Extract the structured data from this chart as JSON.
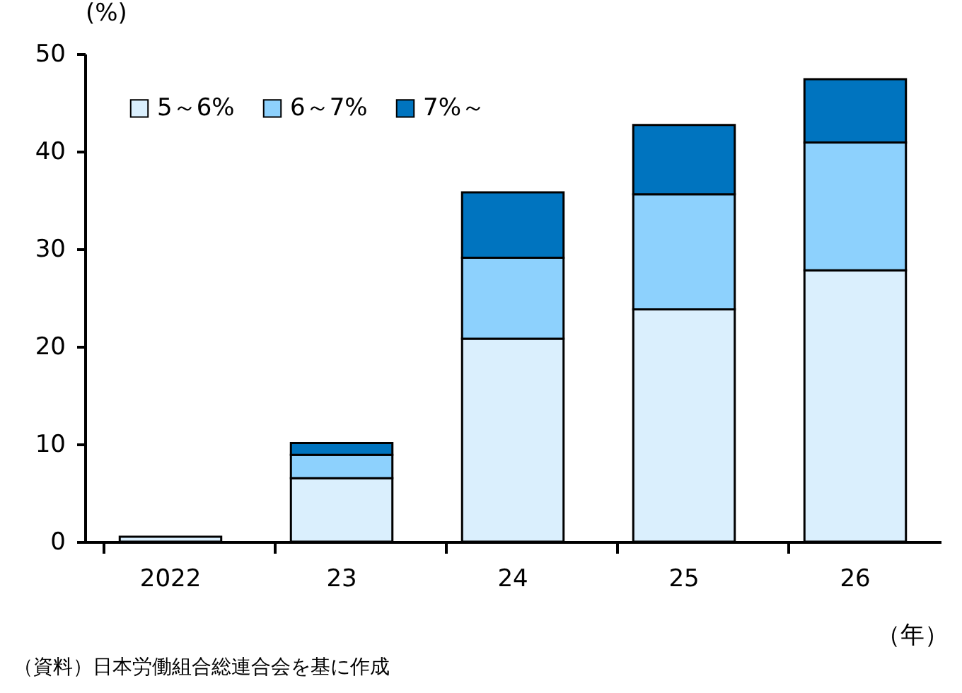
{
  "chart_data": {
    "type": "bar",
    "stacked": true,
    "ylabel": "(%)",
    "xlabel": "（年）",
    "categories": [
      "2022",
      "23",
      "24",
      "25",
      "26"
    ],
    "series": [
      {
        "name": "5～6%",
        "color": "#daeffd",
        "values": [
          0.5,
          6.5,
          20.8,
          23.8,
          27.8
        ]
      },
      {
        "name": "6～7%",
        "color": "#8dd1fd",
        "values": [
          null,
          2.4,
          8.3,
          11.8,
          13.1
        ]
      },
      {
        "name": "7%～",
        "color": "#0074bf",
        "values": [
          null,
          1.2,
          6.7,
          7.1,
          6.5
        ]
      }
    ],
    "ylim": [
      0,
      50
    ],
    "yticks": [
      0,
      10,
      20,
      30,
      40,
      50
    ],
    "grid": false,
    "legend": "top left",
    "annotations": [
      "（資料）日本労働組合総連合会を基に作成"
    ]
  }
}
